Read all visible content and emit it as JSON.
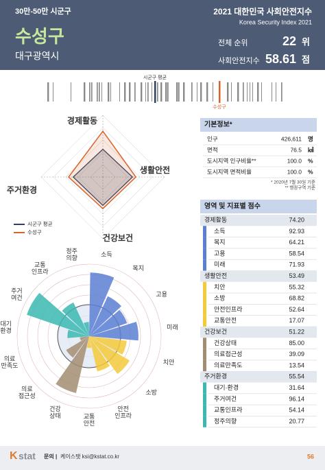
{
  "header": {
    "category": "30만-50만 시군구",
    "name": "수성구",
    "region": "대구광역시",
    "index_title": "2021 대한민국 사회안전지수",
    "index_subtitle": "Korea Security Index 2021",
    "rank_label": "전체 순위",
    "rank": "22",
    "rank_unit": "위",
    "score_label": "사회안전지수",
    "score": "58.61",
    "score_unit": "점"
  },
  "radar": {
    "type": "radar",
    "series": [
      {
        "name": "시군구 평균",
        "color": "#2f3f66",
        "values": [
          45,
          48,
          46,
          48
        ]
      },
      {
        "name": "수성구",
        "color": "#d9622b"
      }
    ]
  },
  "polar": {
    "type": "polar-bar",
    "labels": [
      "소득",
      "복지",
      "고용",
      "미래",
      "치안",
      "소방",
      "안전\n인프라",
      "교통\n안전",
      "건강\n상태",
      "의료\n접근성",
      "의료\n만족도",
      "대기\n환경",
      "주거\n여건",
      "교통\n인프라",
      "정주\n의향"
    ]
  },
  "info": {
    "title": "기본정보*",
    "rows": [
      {
        "label": "인구",
        "value": "426,611",
        "unit": "명"
      },
      {
        "label": "면적",
        "value": "76.5",
        "unit": "㎢"
      },
      {
        "label": "도시지역 인구비율**",
        "value": "100.0",
        "unit": "%"
      },
      {
        "label": "도시지역 면적비율",
        "value": "100.0",
        "unit": "%"
      }
    ],
    "notes": [
      "* 2020년 7월 30일 기준",
      "** 행정구역 기준"
    ]
  },
  "table": {
    "title": "영역 및 지표별 점수",
    "groups": [
      {
        "name": "경제활동",
        "score": "74.20",
        "color": "#5b7fd4",
        "items": [
          {
            "name": "소득",
            "score": "92.93"
          },
          {
            "name": "복지",
            "score": "64.21"
          },
          {
            "name": "고용",
            "score": "58.54"
          },
          {
            "name": "미래",
            "score": "71.93"
          }
        ]
      },
      {
        "name": "생활안전",
        "score": "53.49",
        "color": "#f5c93a",
        "items": [
          {
            "name": "치안",
            "score": "55.32"
          },
          {
            "name": "소방",
            "score": "68.82"
          },
          {
            "name": "안전인프라",
            "score": "52.64"
          },
          {
            "name": "교통안전",
            "score": "17.07"
          }
        ]
      },
      {
        "name": "건강보건",
        "score": "51.22",
        "color": "#a38d72",
        "items": [
          {
            "name": "건강상태",
            "score": "85.00"
          },
          {
            "name": "의료접근성",
            "score": "39.09"
          },
          {
            "name": "의료만족도",
            "score": "13.54"
          }
        ]
      },
      {
        "name": "주거환경",
        "score": "55.54",
        "color": "#3bb9b1",
        "items": [
          {
            "name": "대기·환경",
            "score": "31.64"
          },
          {
            "name": "주거여건",
            "score": "96.14"
          },
          {
            "name": "교통인프라",
            "score": "54.14"
          },
          {
            "name": "정주의향",
            "score": "20.77"
          }
        ]
      }
    ]
  },
  "footer": {
    "logo_k": "K",
    "logo_rest": "stat",
    "contact_label": "문의 |",
    "contact": "케이스탯 ksi@kstat.co.kr",
    "page": "56"
  }
}
